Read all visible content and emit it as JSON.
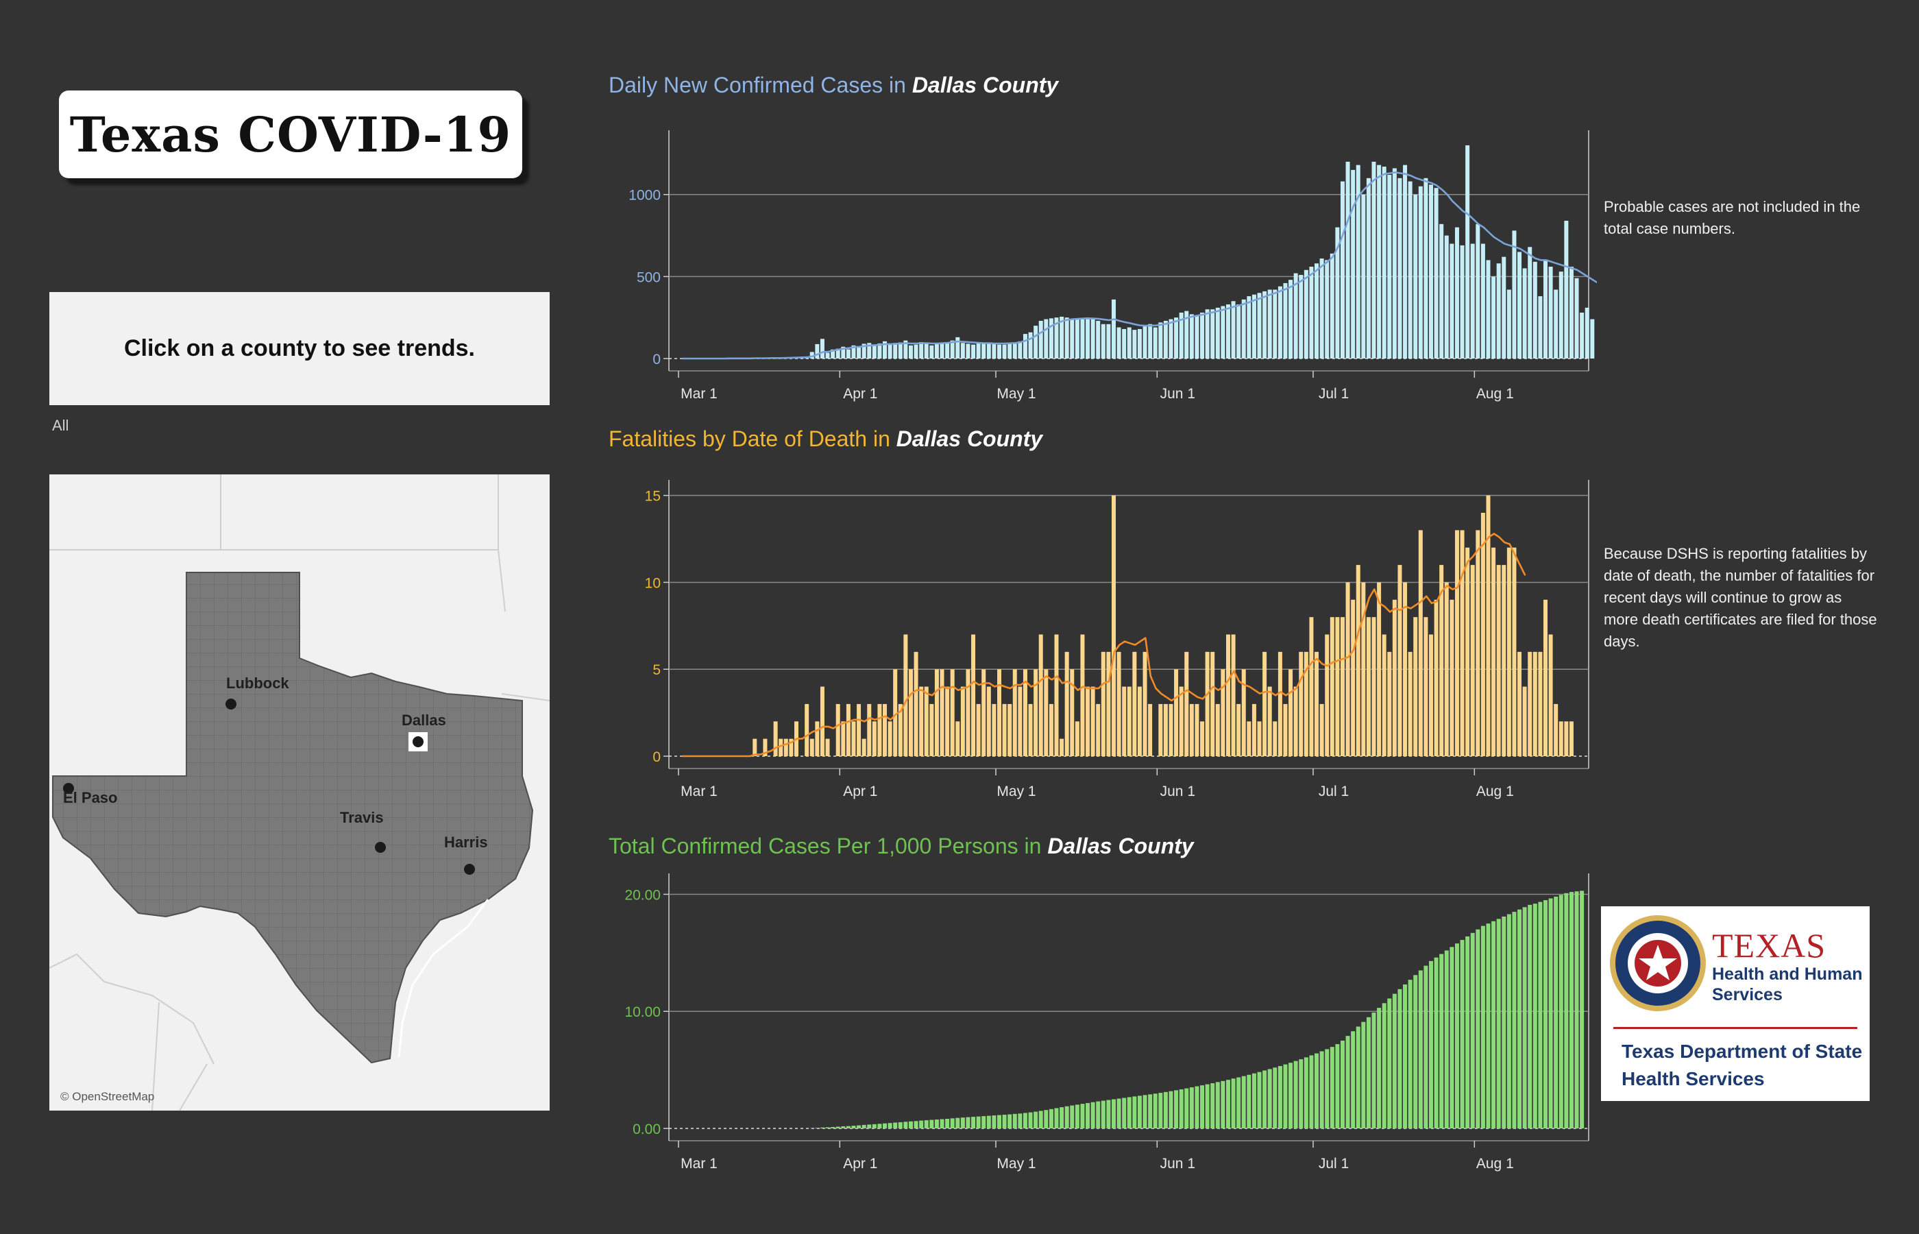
{
  "dashboard_title": "Texas COVID-19",
  "prompt": "Click on a county to see trends.",
  "filter_label": "All",
  "map": {
    "attribution": "© OpenStreetMap",
    "cities": [
      "Lubbock",
      "Dallas",
      "El Paso",
      "Travis",
      "Harris"
    ]
  },
  "colors": {
    "background": "#333333",
    "cases_title": "#8fb4e6",
    "cases_bar": "#c6eef7",
    "cases_line": "#7aa3d8",
    "deaths_title": "#f2b632",
    "deaths_bar": "#fad78d",
    "deaths_line": "#f28c28",
    "total_title": "#6ec24f",
    "total_bar": "#8bdc78",
    "logo_red": "#b32025",
    "logo_navy": "#1d3a6e"
  },
  "notes": {
    "cases": "Probable cases are not included in the total case numbers.",
    "deaths": "Because DSHS is reporting fatalities by date of death, the number of fatalities for recent days will continue to grow as more death certificates are filed for those days."
  },
  "logo": {
    "line1": "TEXAS",
    "line2a": "Health and Human",
    "line2b": "Services",
    "line3a": "Texas Department of State",
    "line3b": "Health Services"
  },
  "chart_data": [
    {
      "id": "cases",
      "type": "bar",
      "title_prefix": "Daily New Confirmed Cases in ",
      "title_county": "Dallas County",
      "x_start": "2020-03-01",
      "x_ticks": [
        "Mar 1",
        "Apr 1",
        "May 1",
        "Jun 1",
        "Jul 1",
        "Aug 1"
      ],
      "y_ticks": [
        "0",
        "500",
        "1000"
      ],
      "ylim": [
        0,
        1350
      ],
      "grid": true,
      "series": [
        {
          "type": "bar",
          "values": [
            0,
            0,
            0,
            0,
            0,
            0,
            0,
            0,
            0,
            1,
            1,
            1,
            2,
            2,
            2,
            3,
            3,
            3,
            4,
            4,
            5,
            6,
            7,
            8,
            10,
            40,
            88,
            120,
            35,
            55,
            60,
            72,
            56,
            80,
            75,
            90,
            95,
            85,
            92,
            105,
            90,
            95,
            98,
            110,
            80,
            85,
            100,
            95,
            80,
            90,
            95,
            100,
            110,
            130,
            95,
            90,
            85,
            100,
            90,
            95,
            90,
            85,
            85,
            95,
            90,
            105,
            150,
            160,
            200,
            230,
            240,
            245,
            250,
            255,
            250,
            240,
            245,
            245,
            250,
            240,
            230,
            210,
            210,
            360,
            190,
            180,
            190,
            175,
            180,
            200,
            210,
            190,
            220,
            230,
            240,
            250,
            280,
            290,
            270,
            260,
            280,
            300,
            300,
            310,
            320,
            330,
            350,
            330,
            360,
            380,
            390,
            400,
            410,
            420,
            420,
            440,
            460,
            480,
            520,
            510,
            540,
            560,
            580,
            610,
            600,
            640,
            800,
            1080,
            1200,
            1150,
            1180,
            1000,
            1100,
            1200,
            1180,
            1170,
            1120,
            1160,
            1100,
            1180,
            1080,
            1000,
            1050,
            1100,
            1060,
            1040,
            820,
            750,
            700,
            800,
            690,
            1300,
            700,
            820,
            700,
            600,
            500,
            580,
            620,
            420,
            780,
            650,
            550,
            680,
            590,
            380,
            600,
            560,
            420,
            530,
            840,
            560,
            490,
            280,
            310,
            240
          ]
        },
        {
          "type": "line",
          "values": [
            0,
            0,
            0,
            0,
            0,
            0,
            0,
            0,
            0,
            1,
            1,
            1,
            1,
            1,
            2,
            2,
            2,
            3,
            3,
            3,
            4,
            5,
            6,
            7,
            8,
            14,
            26,
            40,
            42,
            48,
            55,
            60,
            64,
            70,
            72,
            76,
            80,
            82,
            84,
            88,
            88,
            90,
            92,
            94,
            92,
            92,
            94,
            94,
            92,
            92,
            94,
            96,
            100,
            104,
            102,
            100,
            98,
            96,
            94,
            94,
            92,
            92,
            92,
            93,
            95,
            100,
            110,
            122,
            140,
            160,
            180,
            200,
            215,
            228,
            236,
            240,
            242,
            244,
            245,
            244,
            242,
            238,
            234,
            240,
            230,
            222,
            216,
            208,
            202,
            200,
            200,
            202,
            206,
            212,
            220,
            228,
            238,
            248,
            256,
            262,
            268,
            276,
            282,
            290,
            298,
            306,
            316,
            324,
            334,
            344,
            356,
            366,
            378,
            390,
            400,
            412,
            424,
            438,
            456,
            474,
            494,
            516,
            540,
            566,
            590,
            620,
            680,
            760,
            850,
            930,
            990,
            1030,
            1060,
            1090,
            1110,
            1125,
            1130,
            1135,
            1130,
            1125,
            1115,
            1100,
            1090,
            1080,
            1070,
            1055,
            1030,
            1000,
            960,
            930,
            900,
            880,
            850,
            820,
            800,
            770,
            740,
            720,
            700,
            690,
            680,
            670,
            650,
            630,
            610,
            600,
            600,
            590,
            580,
            570,
            560,
            550,
            540,
            520,
            500,
            480,
            460,
            440
          ]
        }
      ]
    },
    {
      "id": "deaths",
      "type": "bar",
      "title_prefix": "Fatalities by Date of Death in ",
      "title_county": "Dallas County",
      "x_start": "2020-03-01",
      "x_ticks": [
        "Mar 1",
        "Apr 1",
        "May 1",
        "Jun 1",
        "Jul 1",
        "Aug 1"
      ],
      "y_ticks": [
        "0",
        "5",
        "10",
        "15"
      ],
      "ylim": [
        0,
        15.5
      ],
      "grid": true,
      "series": [
        {
          "type": "bar",
          "values": [
            0,
            0,
            0,
            0,
            0,
            0,
            0,
            0,
            0,
            0,
            0,
            0,
            0,
            0,
            1,
            0,
            1,
            0,
            2,
            1,
            1,
            1,
            2,
            0,
            3,
            1,
            2,
            4,
            1,
            0,
            3,
            2,
            3,
            2,
            3,
            1,
            3,
            2,
            3,
            3,
            2,
            5,
            3,
            7,
            5,
            6,
            4,
            4,
            3,
            5,
            5,
            4,
            5,
            2,
            4,
            5,
            7,
            3,
            5,
            4,
            3,
            5,
            3,
            3,
            5,
            4,
            5,
            3,
            5,
            7,
            5,
            3,
            7,
            1,
            6,
            5,
            2,
            7,
            4,
            4,
            3,
            6,
            6,
            15,
            6,
            4,
            4,
            6,
            4,
            6,
            3,
            0,
            3,
            3,
            3,
            5,
            4,
            6,
            3,
            3,
            2,
            6,
            6,
            3,
            5,
            7,
            7,
            3,
            5,
            2,
            3,
            2,
            6,
            4,
            2,
            6,
            3,
            5,
            4,
            6,
            6,
            8,
            6,
            3,
            7,
            8,
            8,
            8,
            10,
            9,
            11,
            10,
            8,
            8,
            10,
            7,
            6,
            9,
            11,
            10,
            6,
            8,
            13,
            8,
            7,
            9,
            11,
            10,
            9,
            13,
            13,
            12,
            11,
            13,
            14,
            15,
            12,
            11,
            11,
            12,
            12,
            6,
            4,
            6,
            6,
            6,
            9,
            7,
            3,
            2,
            2,
            2,
            0,
            0,
            0,
            0
          ]
        },
        {
          "type": "line",
          "values": [
            0,
            0,
            0,
            0,
            0,
            0,
            0,
            0,
            0,
            0,
            0,
            0,
            0,
            0,
            0.1,
            0.1,
            0.2,
            0.3,
            0.5,
            0.6,
            0.7,
            0.8,
            1.0,
            1.0,
            1.2,
            1.4,
            1.5,
            1.7,
            1.7,
            1.6,
            1.8,
            1.9,
            2.0,
            2.1,
            2.1,
            2.0,
            2.2,
            2.1,
            2.2,
            2.3,
            2.1,
            2.4,
            2.6,
            3.2,
            3.6,
            3.8,
            3.8,
            3.6,
            3.5,
            3.8,
            4.0,
            3.9,
            4.0,
            3.8,
            3.9,
            4.0,
            4.3,
            4.1,
            4.2,
            4.2,
            4.0,
            4.1,
            4.0,
            3.9,
            4.1,
            4.1,
            4.3,
            4.0,
            4.1,
            4.4,
            4.6,
            4.4,
            4.6,
            4.2,
            4.3,
            4.1,
            3.8,
            4.0,
            3.9,
            3.9,
            3.9,
            4.2,
            4.3,
            6.0,
            6.4,
            6.6,
            6.5,
            6.4,
            6.6,
            6.8,
            4.6,
            3.9,
            3.6,
            3.4,
            3.2,
            3.4,
            3.6,
            3.8,
            3.6,
            3.4,
            3.3,
            3.6,
            4.0,
            3.8,
            4.0,
            4.4,
            4.9,
            4.3,
            4.1,
            4.0,
            3.8,
            3.6,
            3.7,
            3.7,
            3.5,
            3.7,
            3.5,
            3.7,
            3.9,
            4.5,
            5.0,
            5.4,
            5.6,
            5.3,
            5.2,
            5.4,
            5.5,
            5.6,
            5.7,
            6.1,
            7.2,
            8.1,
            9.1,
            9.6,
            8.8,
            8.6,
            8.3,
            8.5,
            8.4,
            8.6,
            8.5,
            8.7,
            8.9,
            9.2,
            8.8,
            8.9,
            9.5,
            9.8,
            9.6,
            9.7,
            10.5,
            11.2,
            11.5,
            11.9,
            12.2,
            12.6,
            12.8,
            12.6,
            12.3,
            12.2,
            11.6,
            11.0,
            10.4
          ]
        }
      ]
    },
    {
      "id": "total",
      "type": "bar",
      "title_prefix": "Total Confirmed Cases Per 1,000 Persons in ",
      "title_county": "Dallas County",
      "x_start": "2020-03-01",
      "x_ticks": [
        "Mar 1",
        "Apr 1",
        "May 1",
        "Jun 1",
        "Jul 1",
        "Aug 1"
      ],
      "y_ticks": [
        "0.00",
        "10.00",
        "20.00"
      ],
      "ylim": [
        0,
        21.2
      ],
      "grid": true,
      "series": [
        {
          "type": "bar",
          "values": [
            0,
            0,
            0,
            0,
            0,
            0,
            0,
            0,
            0,
            0,
            0,
            0,
            0,
            0,
            0,
            0,
            0,
            0,
            0,
            0,
            0,
            0,
            0,
            0,
            0,
            0.02,
            0.05,
            0.08,
            0.1,
            0.12,
            0.15,
            0.18,
            0.2,
            0.23,
            0.26,
            0.3,
            0.33,
            0.36,
            0.39,
            0.43,
            0.46,
            0.5,
            0.53,
            0.57,
            0.6,
            0.63,
            0.67,
            0.7,
            0.73,
            0.76,
            0.79,
            0.82,
            0.86,
            0.9,
            0.93,
            0.96,
            0.99,
            1.02,
            1.05,
            1.08,
            1.11,
            1.14,
            1.17,
            1.2,
            1.24,
            1.27,
            1.32,
            1.37,
            1.43,
            1.5,
            1.57,
            1.65,
            1.73,
            1.81,
            1.89,
            1.96,
            2.03,
            2.1,
            2.17,
            2.24,
            2.31,
            2.37,
            2.43,
            2.49,
            2.55,
            2.61,
            2.67,
            2.73,
            2.79,
            2.85,
            2.91,
            2.97,
            3.04,
            3.11,
            3.18,
            3.26,
            3.34,
            3.42,
            3.51,
            3.6,
            3.68,
            3.77,
            3.86,
            3.96,
            4.05,
            4.15,
            4.26,
            4.36,
            4.47,
            4.58,
            4.7,
            4.82,
            4.95,
            5.07,
            5.2,
            5.33,
            5.47,
            5.61,
            5.76,
            5.91,
            6.07,
            6.24,
            6.41,
            6.59,
            6.77,
            6.96,
            7.2,
            7.5,
            7.9,
            8.3,
            8.7,
            9.1,
            9.5,
            9.9,
            10.3,
            10.7,
            11.1,
            11.5,
            11.9,
            12.3,
            12.7,
            13.1,
            13.5,
            13.9,
            14.3,
            14.6,
            14.9,
            15.2,
            15.5,
            15.8,
            16.1,
            16.4,
            16.7,
            17.0,
            17.3,
            17.5,
            17.7,
            17.9,
            18.1,
            18.3,
            18.5,
            18.7,
            18.9,
            19.1,
            19.2,
            19.35,
            19.5,
            19.65,
            19.8,
            19.95,
            20.1,
            20.2,
            20.25,
            20.3
          ]
        }
      ]
    }
  ]
}
